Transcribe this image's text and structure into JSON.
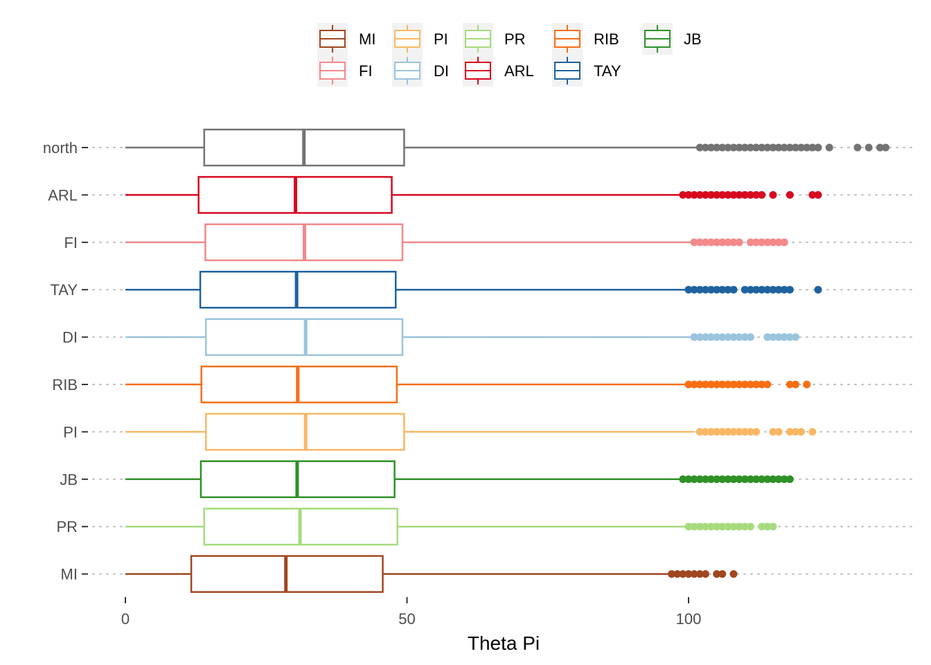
{
  "chart_data": {
    "type": "boxplot",
    "orientation": "horizontal",
    "xlabel": "Theta Pi",
    "ylabel": "",
    "xlim": [
      0,
      140
    ],
    "x_ticks": [
      0,
      50,
      100
    ],
    "x_tick_labels": [
      "0",
      "50",
      "100"
    ],
    "grid": "dotted horizontal lines at each category",
    "legend_position": "top",
    "legend": [
      {
        "label": "MI",
        "color": "#A0471E"
      },
      {
        "label": "FI",
        "color": "#F4898B"
      },
      {
        "label": "PI",
        "color": "#F9B764"
      },
      {
        "label": "DI",
        "color": "#99C4DD"
      },
      {
        "label": "PR",
        "color": "#A6DB7D"
      },
      {
        "label": "ARL",
        "color": "#D7081F"
      },
      {
        "label": "RIB",
        "color": "#F76E13"
      },
      {
        "label": "TAY",
        "color": "#1F62A1"
      },
      {
        "label": "JB",
        "color": "#2F9127"
      }
    ],
    "categories": [
      "north",
      "ARL",
      "FI",
      "TAY",
      "DI",
      "RIB",
      "PI",
      "JB",
      "PR",
      "MI"
    ],
    "series": [
      {
        "category": "north",
        "color": "#737373",
        "whisker_low": 0,
        "q1": 14.0,
        "median": 31.7,
        "q3": 49.5,
        "whisker_high": 102.0,
        "outliers": [
          102,
          103,
          104,
          105,
          106,
          107,
          108,
          109,
          110,
          111,
          112,
          113,
          114,
          115,
          116,
          117,
          118,
          119,
          120,
          121,
          122,
          123,
          125,
          130,
          132,
          134,
          135
        ]
      },
      {
        "category": "ARL",
        "color": "#D7081F",
        "whisker_low": 0,
        "q1": 13.0,
        "median": 30.2,
        "q3": 47.3,
        "whisker_high": 99.0,
        "outliers": [
          99,
          100,
          101,
          102,
          103,
          104,
          105,
          106,
          107,
          108,
          109,
          110,
          111,
          112,
          113,
          115,
          118,
          122,
          123
        ]
      },
      {
        "category": "FI",
        "color": "#F4898B",
        "whisker_low": 0,
        "q1": 14.2,
        "median": 31.8,
        "q3": 49.2,
        "whisker_high": 101.0,
        "outliers": [
          101,
          102,
          103,
          104,
          105,
          106,
          107,
          108,
          109,
          111,
          112,
          113,
          114,
          115,
          116,
          117
        ]
      },
      {
        "category": "TAY",
        "color": "#1F62A1",
        "whisker_low": 0,
        "q1": 13.3,
        "median": 30.4,
        "q3": 48.0,
        "whisker_high": 100.0,
        "outliers": [
          100,
          101,
          102,
          103,
          104,
          105,
          106,
          107,
          108,
          110,
          111,
          112,
          113,
          114,
          115,
          116,
          117,
          118,
          123
        ]
      },
      {
        "category": "DI",
        "color": "#99C4DD",
        "whisker_low": 0,
        "q1": 14.3,
        "median": 32.0,
        "q3": 49.2,
        "whisker_high": 101.0,
        "outliers": [
          101,
          102,
          103,
          104,
          105,
          106,
          107,
          108,
          109,
          110,
          111,
          114,
          115,
          116,
          117,
          118,
          119
        ]
      },
      {
        "category": "RIB",
        "color": "#F76E13",
        "whisker_low": 0,
        "q1": 13.5,
        "median": 30.6,
        "q3": 48.2,
        "whisker_high": 100.0,
        "outliers": [
          100,
          101,
          102,
          103,
          104,
          105,
          106,
          107,
          108,
          109,
          110,
          111,
          112,
          113,
          114,
          118,
          119,
          121
        ]
      },
      {
        "category": "PI",
        "color": "#F9B764",
        "whisker_low": 0,
        "q1": 14.3,
        "median": 32.0,
        "q3": 49.5,
        "whisker_high": 101.0,
        "outliers": [
          102,
          103,
          104,
          105,
          106,
          107,
          108,
          109,
          110,
          111,
          112,
          115,
          116,
          118,
          119,
          120,
          122
        ]
      },
      {
        "category": "JB",
        "color": "#2F9127",
        "whisker_low": 0,
        "q1": 13.4,
        "median": 30.5,
        "q3": 47.8,
        "whisker_high": 99.0,
        "outliers": [
          99,
          100,
          101,
          102,
          103,
          104,
          105,
          106,
          107,
          108,
          109,
          110,
          111,
          112,
          113,
          114,
          115,
          116,
          117,
          118
        ]
      },
      {
        "category": "PR",
        "color": "#A6DB7D",
        "whisker_low": 0,
        "q1": 14.0,
        "median": 31.0,
        "q3": 48.3,
        "whisker_high": 100.0,
        "outliers": [
          100,
          101,
          102,
          103,
          104,
          105,
          106,
          107,
          108,
          109,
          110,
          111,
          113,
          114,
          115
        ]
      },
      {
        "category": "MI",
        "color": "#A0471E",
        "whisker_low": 0,
        "q1": 11.7,
        "median": 28.5,
        "q3": 45.7,
        "whisker_high": 97.0,
        "outliers": [
          97,
          98,
          99,
          100,
          101,
          102,
          103,
          105,
          106,
          108
        ]
      }
    ]
  }
}
